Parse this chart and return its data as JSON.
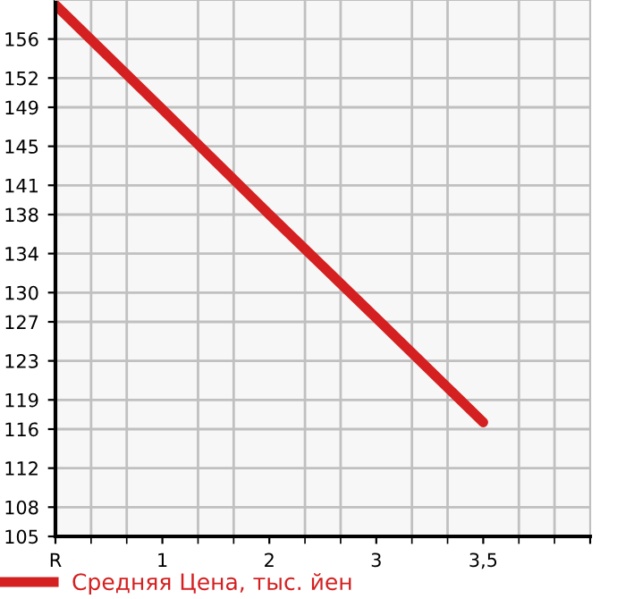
{
  "chart_data": {
    "type": "line",
    "categories": [
      "R",
      "1",
      "2",
      "3",
      "3,5",
      null
    ],
    "series": [
      {
        "name": "Средняя Цена, тыс. йен",
        "color": "#d42020",
        "values": [
          159.5,
          148.8,
          138,
          127.4,
          116.7,
          null
        ]
      }
    ],
    "ylim": [
      105,
      160
    ],
    "yticks": [
      105,
      108,
      112,
      116,
      119,
      123,
      127,
      130,
      134,
      138,
      141,
      145,
      149,
      152,
      156
    ],
    "grid": true,
    "legend": "bottom left",
    "marker": "none",
    "line_style": "solid"
  }
}
